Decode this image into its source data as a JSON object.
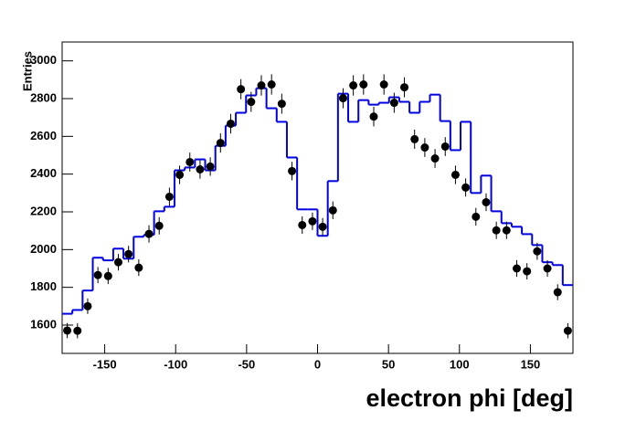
{
  "chart_data": {
    "type": "histogram",
    "xlabel": "electron phi [deg]",
    "ylabel": "Entries",
    "bins": [
      -180,
      -172.8,
      -165.6,
      -158.4,
      -151.2,
      -144,
      -136.8,
      -129.6,
      -122.4,
      -115.2,
      -108,
      -100.8,
      -93.6,
      -86.4,
      -79.2,
      -72,
      -64.8,
      -57.6,
      -50.4,
      -43.2,
      -36,
      -28.8,
      -21.6,
      -14.4,
      -7.2,
      0,
      7.2,
      14.4,
      21.6,
      28.8,
      36,
      43.2,
      50.4,
      57.6,
      64.8,
      72,
      79.2,
      86.4,
      93.6,
      100.8,
      108,
      115.2,
      122.4,
      129.6,
      136.8,
      144,
      151.2,
      158.4,
      165.6,
      172.8,
      180
    ],
    "values": [
      1660,
      1680,
      1783,
      1957,
      1943,
      2005,
      1952,
      2068,
      2078,
      2203,
      2227,
      2420,
      2435,
      2478,
      2420,
      2550,
      2657,
      2725,
      2817,
      2855,
      2749,
      2677,
      2488,
      2213,
      2213,
      2073,
      2363,
      2826,
      2677,
      2792,
      2768,
      2778,
      2807,
      2783,
      2725,
      2783,
      2821,
      2681,
      2527,
      2677,
      2300,
      2392,
      2203,
      2140,
      2121,
      2082,
      2024,
      1933,
      1918,
      1812
    ],
    "color": "#0000e0",
    "data_points": {
      "values": [
        1571,
        1570,
        1700,
        1865,
        1860,
        1933,
        1976,
        1904,
        2083,
        2126,
        2280,
        2396,
        2464,
        2425,
        2440,
        2565,
        2667,
        2850,
        2783,
        2870,
        2875,
        2773,
        2416,
        2130,
        2150,
        2121,
        2208,
        2802,
        2870,
        2875,
        2705,
        2875,
        2778,
        2860,
        2585,
        2541,
        2483,
        2546,
        2396,
        2329,
        2174,
        2251,
        2102,
        2102,
        1900,
        1885,
        1991,
        1900,
        1774,
        1570
      ],
      "errors": [
        40,
        40,
        41,
        43,
        43,
        44,
        44,
        44,
        46,
        46,
        48,
        49,
        50,
        49,
        49,
        51,
        52,
        53,
        53,
        54,
        54,
        53,
        49,
        46,
        46,
        46,
        47,
        53,
        54,
        54,
        52,
        54,
        53,
        53,
        51,
        50,
        50,
        50,
        49,
        48,
        47,
        47,
        46,
        46,
        44,
        43,
        45,
        44,
        42,
        40
      ],
      "color": "#000000"
    },
    "xlim": [
      -180,
      180
    ],
    "ylim": [
      1450,
      3100
    ],
    "xticks": [
      -150,
      -100,
      -50,
      0,
      50,
      100,
      150
    ],
    "yticks": [
      1600,
      1800,
      2000,
      2200,
      2400,
      2600,
      2800,
      3000
    ]
  }
}
